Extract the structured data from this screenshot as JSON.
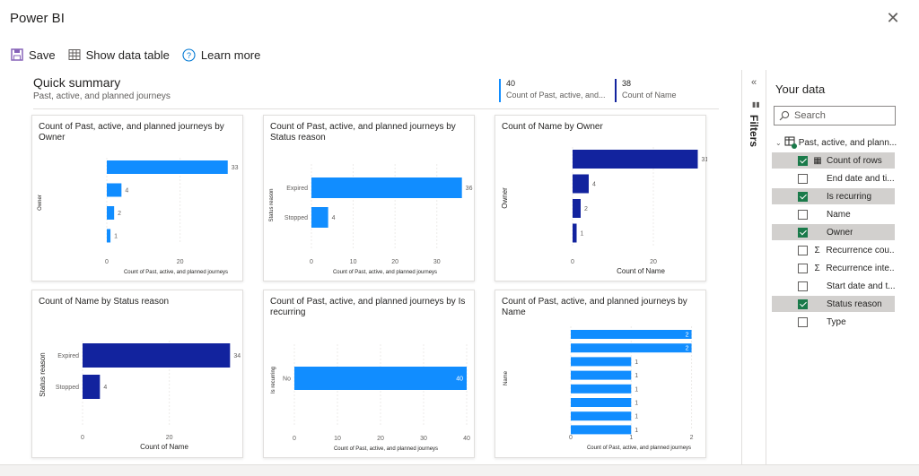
{
  "app": {
    "title": "Power BI"
  },
  "toolbar": {
    "save_label": "Save",
    "show_table_label": "Show data table",
    "learn_more_label": "Learn more"
  },
  "summary": {
    "title": "Quick summary",
    "subtitle": "Past, active, and planned journeys",
    "kpis": [
      {
        "value": "40",
        "label": "Count of Past, active, and...",
        "color": "#118dff"
      },
      {
        "value": "38",
        "label": "Count of Name",
        "color": "#12239e"
      }
    ]
  },
  "colors": {
    "light_bar": "#118dff",
    "dark_bar": "#12239e",
    "check": "#1a7a4a"
  },
  "chart_data": [
    {
      "type": "bar",
      "orientation": "horizontal",
      "title": "Count of Past, active, and planned journeys by Owner",
      "xlabel": "Count of Past, active, and planned journeys",
      "ylabel": "Owner",
      "categories": [
        "",
        "",
        "",
        ""
      ],
      "values": [
        33,
        4,
        2,
        1
      ],
      "xlim": [
        0,
        36
      ],
      "xticks": [
        0,
        20
      ],
      "color": "#118dff",
      "tick_font": 7,
      "xlabel_font": 6
    },
    {
      "type": "bar",
      "orientation": "horizontal",
      "title": "Count of Past, active, and planned journeys by Status reason",
      "xlabel": "Count of Past, active, and planned journeys",
      "ylabel": "Status reason",
      "categories": [
        "Expired",
        "Stopped"
      ],
      "values": [
        36,
        4
      ],
      "xlim": [
        0,
        38
      ],
      "xticks": [
        0,
        10,
        20,
        30
      ],
      "color": "#118dff",
      "tick_font": 7,
      "xlabel_font": 6
    },
    {
      "type": "bar",
      "orientation": "horizontal",
      "title": "Count of Name by Owner",
      "xlabel": "Count of Name",
      "ylabel": "Owner",
      "categories": [
        "",
        "",
        "",
        ""
      ],
      "values": [
        31,
        4,
        2,
        1
      ],
      "xlim": [
        0,
        32
      ],
      "xticks": [
        0,
        20
      ],
      "color": "#12239e",
      "tick_font": 7,
      "xlabel_font": 8
    },
    {
      "type": "bar",
      "orientation": "horizontal",
      "title": "Count of Name by Status reason",
      "xlabel": "Count of Name",
      "ylabel": "Status reason",
      "categories": [
        "Expired",
        "Stopped"
      ],
      "values": [
        34,
        4
      ],
      "xlim": [
        0,
        36
      ],
      "xticks": [
        0,
        20
      ],
      "color": "#12239e",
      "tick_font": 7,
      "xlabel_font": 8
    },
    {
      "type": "bar",
      "orientation": "horizontal",
      "title": "Count of Past, active, and planned journeys by Is recurring",
      "xlabel": "Count of Past, active, and planned journeys",
      "ylabel": "Is recurring",
      "categories": [
        "No"
      ],
      "values": [
        40
      ],
      "xlim": [
        0,
        40
      ],
      "xticks": [
        0,
        10,
        20,
        30,
        40
      ],
      "color": "#118dff",
      "tick_font": 7,
      "xlabel_font": 6
    },
    {
      "type": "bar",
      "orientation": "horizontal",
      "title": "Count of Past, active, and planned journeys by Name",
      "xlabel": "Count of Past, active, and planned journeys",
      "ylabel": "Name",
      "categories": [
        "",
        "",
        "",
        "",
        "",
        "",
        "",
        ""
      ],
      "values": [
        2,
        2,
        1,
        1,
        1,
        1,
        1,
        1
      ],
      "xlim": [
        0,
        2.2
      ],
      "xticks": [
        0,
        1,
        2
      ],
      "color": "#118dff",
      "tick_font": 7,
      "xlabel_font": 6
    }
  ],
  "filters": {
    "collapse": "«",
    "label": "Filters"
  },
  "your_data": {
    "title": "Your data",
    "search_placeholder": "Search",
    "table_name": "Past, active, and plann...",
    "fields": [
      {
        "name": "Count of rows",
        "checked": true,
        "icon": "calculator-icon",
        "glyph": "▦"
      },
      {
        "name": "End date and ti...",
        "checked": false,
        "icon": "",
        "glyph": ""
      },
      {
        "name": "Is recurring",
        "checked": true,
        "icon": "",
        "glyph": ""
      },
      {
        "name": "Name",
        "checked": false,
        "icon": "",
        "glyph": ""
      },
      {
        "name": "Owner",
        "checked": true,
        "icon": "",
        "glyph": ""
      },
      {
        "name": "Recurrence cou...",
        "checked": false,
        "icon": "sigma-icon",
        "glyph": "Σ"
      },
      {
        "name": "Recurrence inte...",
        "checked": false,
        "icon": "sigma-icon",
        "glyph": "Σ"
      },
      {
        "name": "Start date and t...",
        "checked": false,
        "icon": "",
        "glyph": ""
      },
      {
        "name": "Status reason",
        "checked": true,
        "icon": "",
        "glyph": ""
      },
      {
        "name": "Type",
        "checked": false,
        "icon": "",
        "glyph": ""
      }
    ]
  }
}
